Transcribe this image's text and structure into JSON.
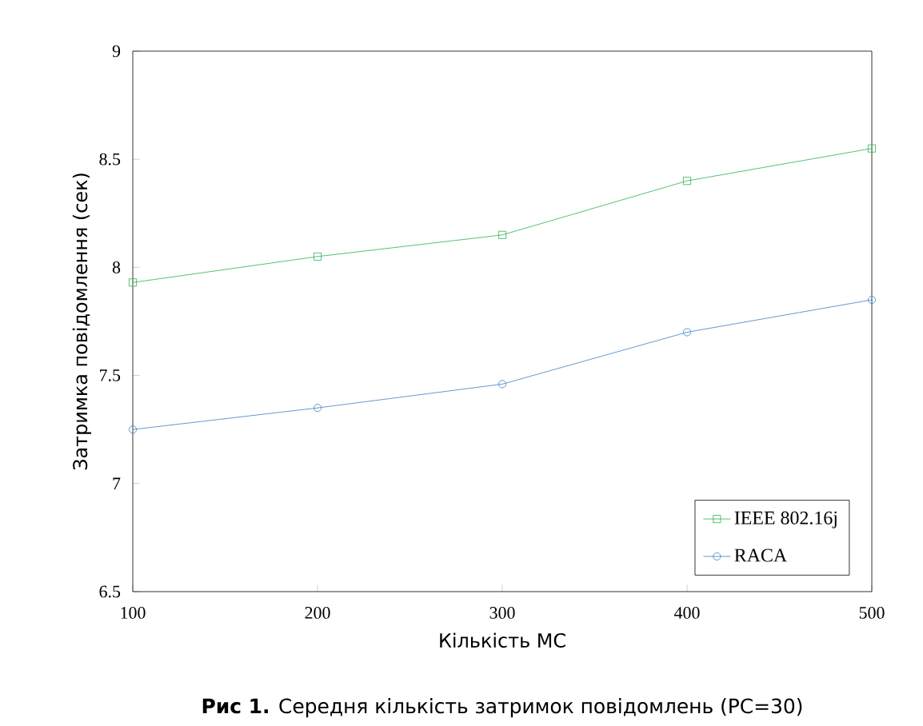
{
  "chart_data": {
    "type": "line",
    "xlabel": "Кількість МС",
    "ylabel": "Затримка повідомлення (сек)",
    "x": [
      100,
      200,
      300,
      400,
      500
    ],
    "series": [
      {
        "name": "IEEE 802.16j",
        "color": "#2eb04f",
        "marker": "square",
        "values": [
          7.93,
          8.05,
          8.15,
          8.4,
          8.55
        ]
      },
      {
        "name": "RACA",
        "color": "#3d7fc1",
        "marker": "circle",
        "values": [
          7.25,
          7.35,
          7.46,
          7.7,
          7.85
        ]
      }
    ],
    "xlim": [
      100,
      500
    ],
    "xticks": [
      100,
      200,
      300,
      400,
      500
    ],
    "ylim": [
      6.5,
      9
    ],
    "yticks": [
      6.5,
      7,
      7.5,
      8,
      8.5,
      9
    ],
    "legend": "bottom right",
    "grid": false,
    "line_style": "solid",
    "annotations": [
      "**Рис 1.** Середня кількість затримок повідомлень (PC=30)"
    ]
  }
}
